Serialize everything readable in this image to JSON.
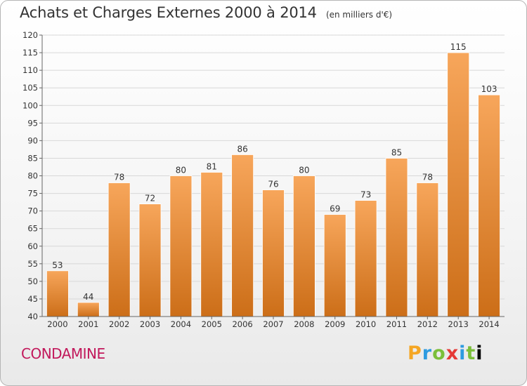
{
  "header": {
    "title": "Achats et Charges Externes 2000 à 2014",
    "subtitle": "(en milliers d'€)"
  },
  "footer": {
    "commune": "CONDAMINE",
    "brand_letters": [
      "P",
      "r",
      "o",
      "x",
      "i",
      "t",
      "i"
    ]
  },
  "colors": {
    "bar_top": "#f7a65b",
    "bar_bottom": "#cc6e18",
    "grid": "#d8d8d8",
    "commune": "#c2185b"
  },
  "chart_data": {
    "type": "bar",
    "title": "Achats et Charges Externes 2000 à 2014",
    "subtitle": "(en milliers d'€)",
    "categories": [
      "2000",
      "2001",
      "2002",
      "2003",
      "2004",
      "2005",
      "2006",
      "2007",
      "2008",
      "2009",
      "2010",
      "2011",
      "2012",
      "2013",
      "2014"
    ],
    "values": [
      53,
      44,
      78,
      72,
      80,
      81,
      86,
      76,
      80,
      69,
      73,
      85,
      78,
      115,
      103
    ],
    "ylim": [
      40,
      120
    ],
    "yticks": [
      40,
      45,
      50,
      55,
      60,
      65,
      70,
      75,
      80,
      85,
      90,
      95,
      100,
      105,
      110,
      115,
      120
    ],
    "grid": true,
    "data_labels": true
  }
}
